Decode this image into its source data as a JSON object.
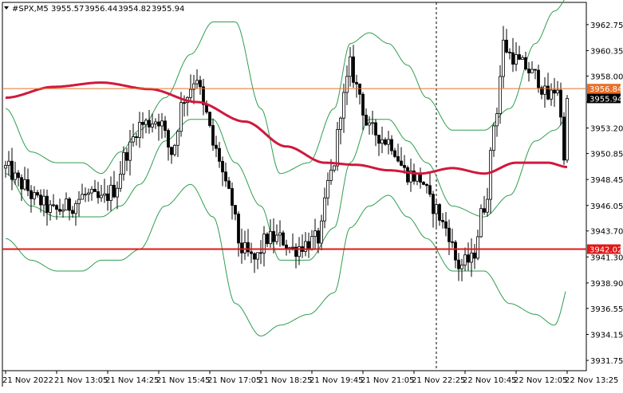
{
  "header": {
    "symbol": "#SPX,M5",
    "open": "3955.57",
    "high": "3956.44",
    "low": "3954.82",
    "close": "3955.94"
  },
  "chart_data": {
    "type": "candlestick",
    "symbol": "#SPX",
    "timeframe": "M5",
    "ylim": [
      3930.8,
      3964.8
    ],
    "y_ticks": [
      "3962.75",
      "3960.35",
      "3958.00",
      "3955.60",
      "3953.20",
      "3950.85",
      "3948.45",
      "3946.05",
      "3943.70",
      "3941.30",
      "3938.90",
      "3936.55",
      "3934.15",
      "3931.75"
    ],
    "x_ticks": [
      "21 Nov 2022",
      "21 Nov 13:05",
      "21 Nov 14:25",
      "21 Nov 15:45",
      "21 Nov 17:05",
      "21 Nov 18:25",
      "21 Nov 19:45",
      "21 Nov 21:05",
      "21 Nov 22:25",
      "22 Nov 10:45",
      "22 Nov 12:05",
      "22 Nov 13:25"
    ],
    "x_tick_positions": [
      0,
      16,
      32,
      48,
      64,
      80,
      96,
      112,
      128,
      144,
      160,
      176
    ],
    "session_separator_index": 135,
    "horizontal_levels": [
      {
        "value": 3956.84,
        "label": "3956.84",
        "color": "#e8702a"
      },
      {
        "value": 3942.02,
        "label": "3942.02",
        "color": "#e01818"
      }
    ],
    "current_price": {
      "value": 3955.94,
      "label": "3955.94"
    },
    "moving_average": {
      "color": "#d0183c",
      "keypoints": [
        [
          0,
          3956.0
        ],
        [
          15,
          3957.0
        ],
        [
          30,
          3957.4
        ],
        [
          45,
          3956.8
        ],
        [
          60,
          3955.6
        ],
        [
          75,
          3953.8
        ],
        [
          88,
          3951.5
        ],
        [
          100,
          3950.0
        ],
        [
          110,
          3949.8
        ],
        [
          120,
          3949.3
        ],
        [
          130,
          3949.0
        ],
        [
          140,
          3949.5
        ],
        [
          150,
          3949.0
        ],
        [
          160,
          3950.0
        ],
        [
          170,
          3950.0
        ],
        [
          176,
          3949.6
        ]
      ]
    },
    "bollinger_bands": {
      "color": "#2e9e4e",
      "upper_keypoints": [
        [
          0,
          3955
        ],
        [
          8,
          3951
        ],
        [
          16,
          3950
        ],
        [
          24,
          3950
        ],
        [
          30,
          3949
        ],
        [
          36,
          3951
        ],
        [
          42,
          3953
        ],
        [
          50,
          3956
        ],
        [
          58,
          3960
        ],
        [
          65,
          3963
        ],
        [
          72,
          3963
        ],
        [
          80,
          3955
        ],
        [
          86,
          3949
        ],
        [
          95,
          3950
        ],
        [
          103,
          3955
        ],
        [
          108,
          3961
        ],
        [
          114,
          3962
        ],
        [
          120,
          3961
        ],
        [
          126,
          3959
        ],
        [
          132,
          3956
        ],
        [
          140,
          3953
        ],
        [
          150,
          3953
        ],
        [
          158,
          3955
        ],
        [
          166,
          3961
        ],
        [
          172,
          3964
        ],
        [
          178,
          3966
        ],
        [
          186,
          3963
        ],
        [
          190,
          3962
        ]
      ],
      "middle_keypoints": [
        [
          0,
          3949
        ],
        [
          8,
          3946
        ],
        [
          16,
          3945
        ],
        [
          24,
          3945
        ],
        [
          30,
          3945
        ],
        [
          36,
          3946
        ],
        [
          42,
          3948
        ],
        [
          50,
          3952
        ],
        [
          58,
          3954
        ],
        [
          65,
          3954
        ],
        [
          72,
          3950
        ],
        [
          80,
          3946
        ],
        [
          86,
          3941
        ],
        [
          95,
          3941
        ],
        [
          103,
          3944
        ],
        [
          108,
          3950
        ],
        [
          114,
          3954
        ],
        [
          120,
          3954
        ],
        [
          126,
          3952
        ],
        [
          132,
          3950
        ],
        [
          140,
          3946
        ],
        [
          150,
          3945
        ],
        [
          158,
          3947
        ],
        [
          166,
          3952
        ],
        [
          172,
          3953
        ],
        [
          178,
          3955
        ],
        [
          186,
          3958
        ],
        [
          190,
          3958
        ]
      ],
      "lower_keypoints": [
        [
          0,
          3943
        ],
        [
          8,
          3941
        ],
        [
          16,
          3940
        ],
        [
          24,
          3940
        ],
        [
          30,
          3941
        ],
        [
          36,
          3941
        ],
        [
          42,
          3942
        ],
        [
          50,
          3946
        ],
        [
          58,
          3948
        ],
        [
          65,
          3945
        ],
        [
          72,
          3937
        ],
        [
          80,
          3934
        ],
        [
          86,
          3935
        ],
        [
          95,
          3936
        ],
        [
          103,
          3938
        ],
        [
          108,
          3944
        ],
        [
          114,
          3946
        ],
        [
          120,
          3947
        ],
        [
          126,
          3945
        ],
        [
          132,
          3943
        ],
        [
          140,
          3940
        ],
        [
          150,
          3940
        ],
        [
          158,
          3937
        ],
        [
          166,
          3936
        ],
        [
          172,
          3935
        ],
        [
          178,
          3940
        ],
        [
          186,
          3948
        ],
        [
          190,
          3950
        ]
      ]
    },
    "candles": {
      "count": 177,
      "close_keypoints": [
        [
          0,
          3949.5
        ],
        [
          5,
          3948
        ],
        [
          10,
          3946.5
        ],
        [
          15,
          3945.5
        ],
        [
          20,
          3946
        ],
        [
          25,
          3947
        ],
        [
          30,
          3946.5
        ],
        [
          34,
          3947.5
        ],
        [
          38,
          3951
        ],
        [
          42,
          3953.5
        ],
        [
          48,
          3954
        ],
        [
          52,
          3951
        ],
        [
          56,
          3956
        ],
        [
          60,
          3958
        ],
        [
          62,
          3955
        ],
        [
          66,
          3951
        ],
        [
          70,
          3947
        ],
        [
          74,
          3942
        ],
        [
          78,
          3941
        ],
        [
          82,
          3943
        ],
        [
          86,
          3943
        ],
        [
          90,
          3942
        ],
        [
          94,
          3942.5
        ],
        [
          98,
          3943
        ],
        [
          102,
          3949
        ],
        [
          106,
          3956
        ],
        [
          108,
          3959
        ],
        [
          110,
          3957
        ],
        [
          114,
          3953
        ],
        [
          120,
          3952
        ],
        [
          126,
          3949
        ],
        [
          130,
          3948.5
        ],
        [
          134,
          3946
        ],
        [
          138,
          3944
        ],
        [
          142,
          3940.5
        ],
        [
          146,
          3941
        ],
        [
          150,
          3946
        ],
        [
          154,
          3955
        ],
        [
          156,
          3961
        ],
        [
          158,
          3960
        ],
        [
          162,
          3959
        ],
        [
          166,
          3958
        ],
        [
          170,
          3956
        ],
        [
          173,
          3957
        ],
        [
          175,
          3951
        ],
        [
          176,
          3955.94
        ]
      ]
    }
  }
}
